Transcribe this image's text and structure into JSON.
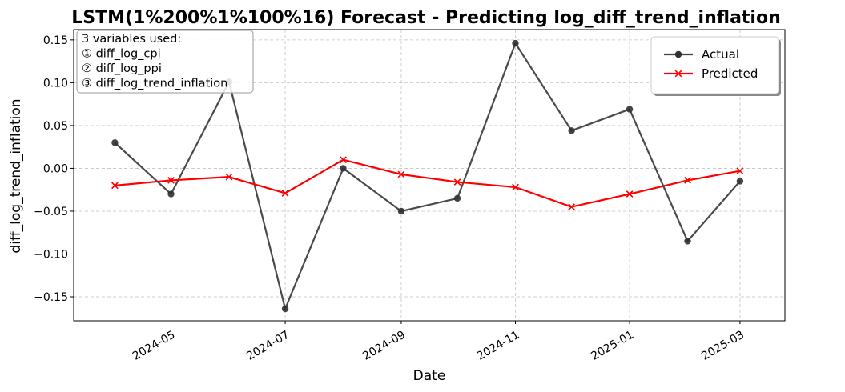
{
  "chart_data": {
    "type": "line",
    "title": "LSTM(1%200%1%100%16) Forecast - Predicting log_diff_trend_inflation",
    "xlabel": "Date",
    "ylabel": "diff_log_trend_inflation",
    "x": [
      "2024-04",
      "2024-05",
      "2024-06",
      "2024-07",
      "2024-08",
      "2024-09",
      "2024-10",
      "2024-11",
      "2024-12",
      "2025-01",
      "2025-02",
      "2025-03"
    ],
    "x_ticks": [
      "2024-05",
      "2024-07",
      "2024-09",
      "2024-11",
      "2025-01",
      "2025-03"
    ],
    "y_ticks": [
      "−0.15",
      "−0.10",
      "−0.05",
      "0.00",
      "0.05",
      "0.10",
      "0.15"
    ],
    "y_tick_values": [
      -0.15,
      -0.1,
      -0.05,
      0.0,
      0.05,
      0.1,
      0.15
    ],
    "ylim": [
      -0.178,
      0.162
    ],
    "xlim": [
      "2024-03-10",
      "2025-03-25"
    ],
    "grid": true,
    "legend_position": "top-right",
    "series": [
      {
        "name": "Actual",
        "color": "#404040",
        "marker": "circle",
        "values": [
          0.03,
          -0.03,
          0.101,
          -0.164,
          0.0,
          -0.05,
          -0.035,
          0.146,
          0.044,
          0.069,
          -0.085,
          -0.015
        ]
      },
      {
        "name": "Predicted",
        "color": "#ff0000",
        "marker": "x",
        "values": [
          -0.02,
          -0.014,
          -0.01,
          -0.029,
          0.01,
          -0.007,
          -0.016,
          -0.022,
          -0.045,
          -0.03,
          -0.014,
          -0.003
        ]
      }
    ],
    "annotation": {
      "lines": [
        "3 variables used:",
        "① diff_log_cpi",
        "② diff_log_ppi",
        "③ diff_log_trend_inflation"
      ],
      "position": "top-left"
    }
  }
}
